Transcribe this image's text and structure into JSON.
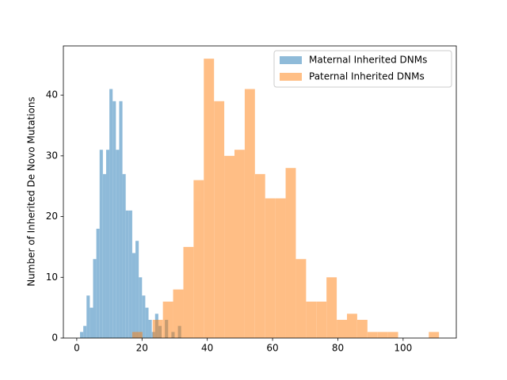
{
  "chart_data": {
    "type": "histogram",
    "ylabel": "Number of Inherited De Novo Mutations",
    "xlim": [
      -4.1,
      116.3
    ],
    "ylim": [
      0,
      48.1
    ],
    "xticks": [
      0,
      20,
      40,
      60,
      80,
      100
    ],
    "yticks": [
      0,
      10,
      20,
      30,
      40
    ],
    "legend": "upper right",
    "alpha": 0.5,
    "series": [
      {
        "name": "Maternal Inherited DNMs",
        "color": "#1f77b4",
        "bins": [
          1,
          2,
          3,
          4,
          5,
          6,
          7,
          8,
          9,
          10,
          11,
          12,
          13,
          14,
          15,
          16,
          17,
          18,
          19,
          20,
          21,
          22,
          23,
          24,
          25,
          26,
          27,
          28,
          29,
          30,
          31,
          32
        ],
        "values": [
          1,
          2,
          7,
          5,
          13,
          18,
          31,
          27,
          31,
          41,
          39,
          31,
          39,
          27,
          21,
          21,
          14,
          16,
          10,
          7,
          5,
          3,
          1,
          4,
          2,
          0,
          3,
          0,
          1,
          0,
          2
        ]
      },
      {
        "name": "Paternal Inherited DNMs",
        "color": "#ff7f0e",
        "bins": [
          17,
          20.13,
          23.27,
          26.4,
          29.53,
          32.67,
          35.8,
          38.93,
          42.07,
          45.2,
          48.33,
          51.47,
          54.6,
          57.73,
          60.87,
          64,
          67.13,
          70.27,
          73.4,
          76.53,
          79.67,
          82.8,
          85.93,
          89.07,
          92.2,
          95.33,
          98.47,
          101.6,
          104.73,
          107.87,
          111
        ],
        "values": [
          1,
          0,
          3,
          6,
          8,
          15,
          26,
          46,
          39,
          30,
          31,
          41,
          27,
          23,
          23,
          28,
          13,
          6,
          6,
          10,
          3,
          4,
          3,
          1,
          1,
          1,
          0,
          0,
          0,
          1
        ]
      }
    ]
  }
}
